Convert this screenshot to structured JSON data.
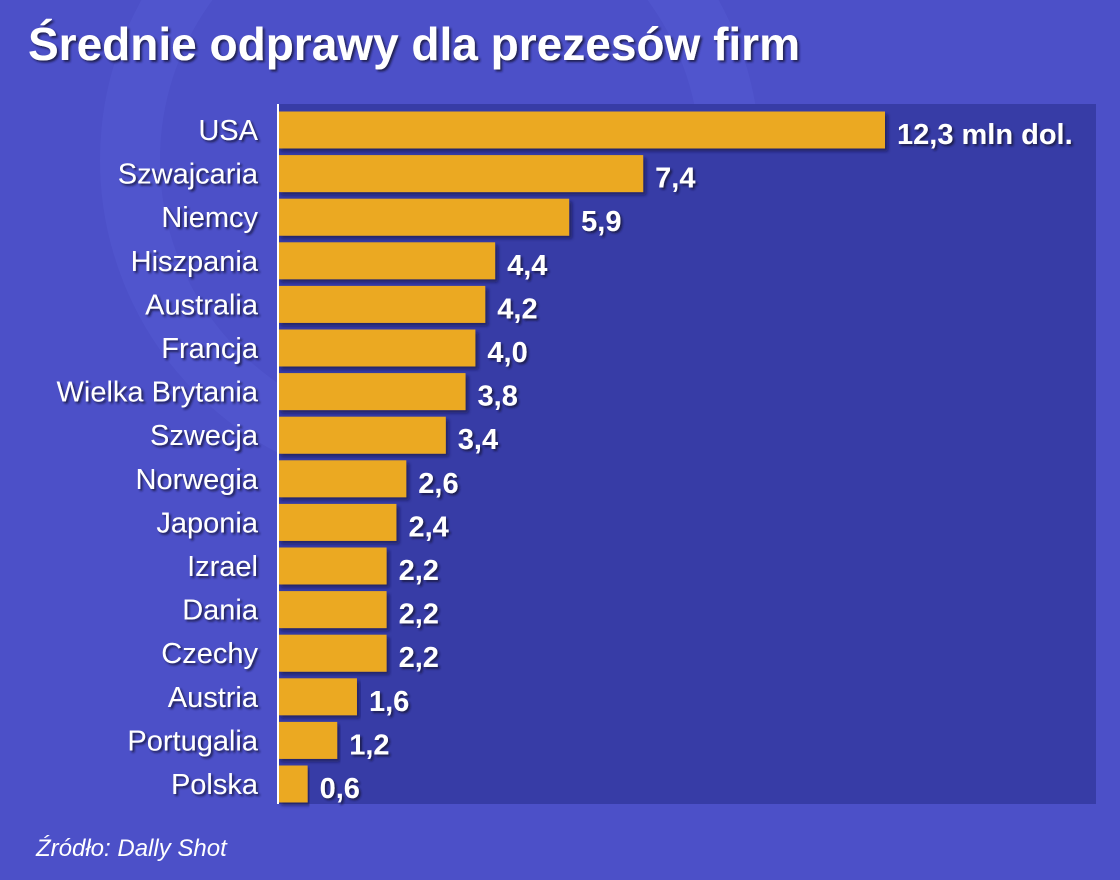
{
  "chart_data": {
    "type": "bar",
    "orientation": "horizontal",
    "title": "Średnie odprawy dla prezesów firm",
    "categories": [
      "USA",
      "Szwajcaria",
      "Niemcy",
      "Hiszpania",
      "Australia",
      "Francja",
      "Wielka Brytania",
      "Szwecja",
      "Norwegia",
      "Japonia",
      "Izrael",
      "Dania",
      "Czechy",
      "Austria",
      "Portugalia",
      "Polska"
    ],
    "values": [
      12.3,
      7.4,
      5.9,
      4.4,
      4.2,
      4.0,
      3.8,
      3.4,
      2.6,
      2.4,
      2.2,
      2.2,
      2.2,
      1.6,
      1.2,
      0.6
    ],
    "value_labels": [
      "12,3 mln dol.",
      "7,4",
      "5,9",
      "4,4",
      "4,2",
      "4,0",
      "3,8",
      "3,4",
      "2,6",
      "2,4",
      "2,2",
      "2,2",
      "2,2",
      "1,6",
      "1,2",
      "0,6"
    ],
    "xlim": [
      0,
      12.3
    ],
    "grid": false,
    "legend": "none",
    "source": "Źródło: Dally Shot"
  },
  "colors": {
    "background": "#4c50c8",
    "plot_background": "#373ca6",
    "bar": "#eba920",
    "text": "#ffffff",
    "axis": "#ffffff"
  }
}
